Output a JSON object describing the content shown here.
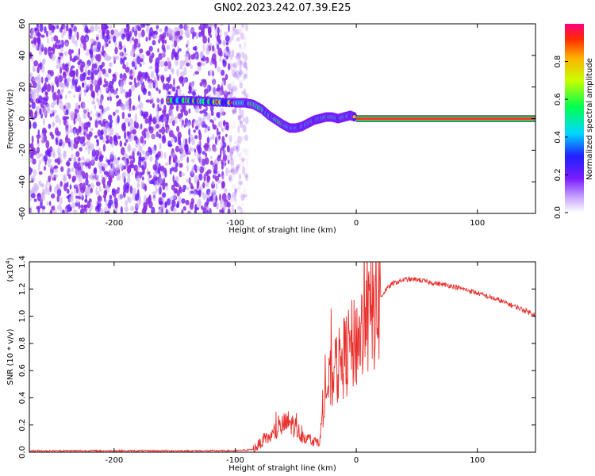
{
  "title": "GN02.2023.242.07.39.E25",
  "chart_data": [
    {
      "type": "heatmap",
      "xlabel": "Height of straight line (km)",
      "ylabel": "Frequency (Hz)",
      "xlim": [
        -270,
        148
      ],
      "ylim": [
        -60,
        60
      ],
      "xticks": [
        -200,
        -100,
        0,
        100
      ],
      "yticks": [
        -60,
        -40,
        -20,
        0,
        20,
        40,
        60
      ],
      "noise_region_x": [
        -270,
        -105
      ],
      "signal_track": {
        "x": [
          -155,
          -140,
          -128,
          -115,
          -100,
          -92,
          -85,
          -78,
          -72,
          -66,
          -60,
          -55,
          -50,
          -45,
          -40,
          -35,
          -30,
          -25,
          -20,
          -15,
          -10,
          -5,
          -1
        ],
        "y": [
          11.5,
          11.5,
          11,
          10.5,
          10,
          10,
          9,
          6,
          2,
          -1,
          -4,
          -6,
          -6,
          -5,
          -3,
          -1,
          0,
          1,
          1,
          0,
          1,
          2,
          1
        ]
      },
      "dc_line": {
        "x_start": 0,
        "x_end": 148,
        "y": 0
      },
      "colorbar": {
        "label": "Normalized spectral amplitude",
        "ticks": [
          "0.0",
          "0.2",
          "0.4",
          "0.6",
          "0.8"
        ],
        "range": [
          0,
          1
        ]
      }
    },
    {
      "type": "line",
      "xlabel": "Height of straight line (km)",
      "ylabel": "SNR (10 * v/v)",
      "multiplier": "(x10",
      "multiplier_exp": "4",
      "xlim": [
        -270,
        148
      ],
      "ylim": [
        0,
        1.4
      ],
      "xticks": [
        -200,
        -100,
        0,
        100
      ],
      "yticks": [
        "0.0",
        "0.2",
        "0.4",
        "0.6",
        "0.8",
        "1.0",
        "1.2",
        "1.4"
      ],
      "series": [
        {
          "color": "#e8302c",
          "envelope": {
            "x": [
              -270,
              -200,
              -100,
              -85,
              -80,
              -70,
              -60,
              -55,
              -50,
              -45,
              -40,
              -35,
              -30,
              -28,
              -25,
              -20,
              -15,
              -10,
              -5,
              0,
              5,
              10,
              15,
              20,
              25,
              30,
              40,
              50,
              60,
              80,
              100,
              120,
              140,
              148
            ],
            "y": [
              0.01,
              0.01,
              0.01,
              0.02,
              0.06,
              0.12,
              0.2,
              0.22,
              0.18,
              0.12,
              0.1,
              0.08,
              0.08,
              0.3,
              0.45,
              0.55,
              0.62,
              0.7,
              0.76,
              0.82,
              0.88,
              0.96,
              1.05,
              1.14,
              1.2,
              1.24,
              1.27,
              1.27,
              1.25,
              1.22,
              1.17,
              1.11,
              1.04,
              1.01
            ]
          }
        }
      ]
    }
  ],
  "colors": {
    "heat_noise": "#8a2be2",
    "heat_noise_light": "#c6a6f2",
    "snr_line": "#e8302c",
    "dc_line_core": "#ff2b2b",
    "dc_line_edge": "#2cff7a"
  }
}
